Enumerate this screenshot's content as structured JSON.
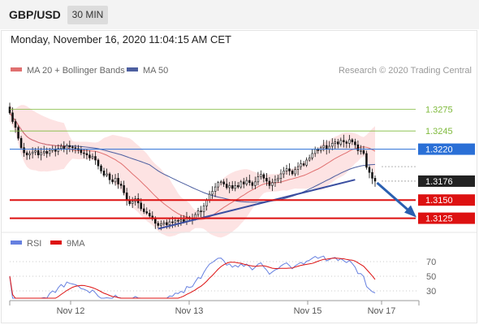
{
  "header": {
    "pair": "GBP/USD",
    "timeframe": "30 MIN",
    "date": "Monday, November 16, 2020 11:04:15 AM CET"
  },
  "legend": {
    "ma20_label": "MA 20 + Bollinger Bands",
    "ma50_label": "MA 50",
    "copyright": "Research © 2020 Trading Central"
  },
  "colors": {
    "ma20": "#e07070",
    "ma50": "#4d5fa0",
    "band_fill": "#fde0e0",
    "candle": "#111111",
    "support": "#dd1111",
    "resistance": "#7fba3c",
    "pivot": "#2a6fd6",
    "trendline": "#3a4ea0",
    "arrow": "#2a5fb0",
    "rsi": "#6680e0",
    "rsi_ma": "#dd1111"
  },
  "chart_data": [
    {
      "type": "candlestick",
      "title": "GBP/USD 30 MIN",
      "x_ticks": [
        "Nov 12",
        "Nov 13",
        "Nov 15",
        "Nov 17"
      ],
      "ylim": [
        1.311,
        1.33
      ],
      "levels": [
        {
          "value": "1.3275",
          "kind": "resistance"
        },
        {
          "value": "1.3245",
          "kind": "resistance"
        },
        {
          "value": "1.3220",
          "kind": "pivot"
        },
        {
          "value": "1.3176",
          "kind": "last_price"
        },
        {
          "value": "1.3150",
          "kind": "support"
        },
        {
          "value": "1.3125",
          "kind": "support"
        }
      ],
      "close": [
        1.327,
        1.3258,
        1.325,
        1.3235,
        1.3222,
        1.3215,
        1.3212,
        1.3214,
        1.3216,
        1.3218,
        1.3212,
        1.3215,
        1.3217,
        1.3214,
        1.3218,
        1.322,
        1.3217,
        1.3221,
        1.3224,
        1.322,
        1.3225,
        1.3223,
        1.3222,
        1.3221,
        1.3219,
        1.3215,
        1.3214,
        1.3212,
        1.3208,
        1.321,
        1.3205,
        1.3197,
        1.319,
        1.3184,
        1.3186,
        1.3178,
        1.3175,
        1.318,
        1.3172,
        1.317,
        1.316,
        1.315,
        1.3145,
        1.3148,
        1.3152,
        1.3146,
        1.3138,
        1.3134,
        1.3132,
        1.3128,
        1.3124,
        1.3118,
        1.3115,
        1.3117,
        1.3119,
        1.3116,
        1.312,
        1.3119,
        1.3122,
        1.3121,
        1.3123,
        1.312,
        1.3126,
        1.3124,
        1.3125,
        1.313,
        1.3135,
        1.3134,
        1.3142,
        1.315,
        1.3158,
        1.3162,
        1.3168,
        1.3174,
        1.3175,
        1.3172,
        1.3167,
        1.317,
        1.3166,
        1.317,
        1.3168,
        1.3175,
        1.3172,
        1.3177,
        1.3174,
        1.317,
        1.3175,
        1.3182,
        1.3185,
        1.318,
        1.3176,
        1.317,
        1.3174,
        1.3178,
        1.318,
        1.3186,
        1.319,
        1.3193,
        1.319,
        1.3186,
        1.3192,
        1.3196,
        1.32,
        1.3198,
        1.3205,
        1.3208,
        1.3214,
        1.322,
        1.3218,
        1.3222,
        1.3225,
        1.322,
        1.3224,
        1.3228,
        1.323,
        1.3227,
        1.3232,
        1.323,
        1.3228,
        1.3233,
        1.323,
        1.3226,
        1.3218,
        1.3218,
        1.3214,
        1.3195,
        1.3188,
        1.318,
        1.3176
      ],
      "rsi": {
        "label": "RSI",
        "ma_label": "9MA",
        "ylim": [
          20,
          80
        ],
        "y_ticks": [
          "70",
          "50",
          "30"
        ]
      }
    }
  ]
}
